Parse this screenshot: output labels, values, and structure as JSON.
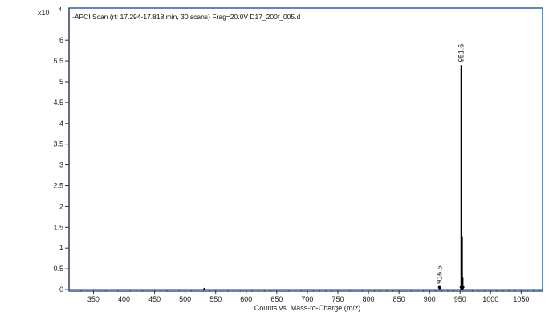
{
  "chart_data": {
    "type": "line",
    "title": "-APCI Scan (rt: 17.294-17.818 min, 30 scans) Frag=20.0V D17_200f_005.d",
    "xlabel": "Counts vs. Mass-to-Charge (m/z)",
    "ylabel": "",
    "y_multiplier_label": "x10",
    "y_multiplier_exponent": "4",
    "xlim": [
      310,
      1085
    ],
    "ylim": [
      0,
      6.5
    ],
    "x_ticks": [
      350,
      400,
      450,
      500,
      550,
      600,
      650,
      700,
      750,
      800,
      850,
      900,
      950,
      1000,
      1050
    ],
    "y_ticks": [
      0,
      0.5,
      1,
      1.5,
      2,
      2.5,
      3,
      3.5,
      4,
      4.5,
      5,
      5.5,
      6
    ],
    "y_tick_labels": [
      "0",
      "0.5",
      "1",
      "1.5",
      "2",
      "2.5",
      "3",
      "3.5",
      "4",
      "4.5",
      "5",
      "5.5",
      "6"
    ],
    "grid": false,
    "series": [
      {
        "values_note": "",
        "peaks": [
          {
            "x": 531,
            "y": 0.04
          },
          {
            "x": 916.5,
            "y": 0.06
          },
          {
            "x": 951.6,
            "y": 5.4
          },
          {
            "x": 952.6,
            "y": 2.75
          },
          {
            "x": 953.6,
            "y": 1.28
          },
          {
            "x": 954.6,
            "y": 0.3
          }
        ]
      }
    ],
    "peak_labels": [
      {
        "x": 951.6,
        "y": 5.4,
        "text": "951.6"
      },
      {
        "x": 916.5,
        "y": 0.06,
        "text": "916.5"
      }
    ],
    "colors": {
      "frame": "#2f5f9e",
      "trace": "#000000",
      "axis": "#333333"
    }
  }
}
